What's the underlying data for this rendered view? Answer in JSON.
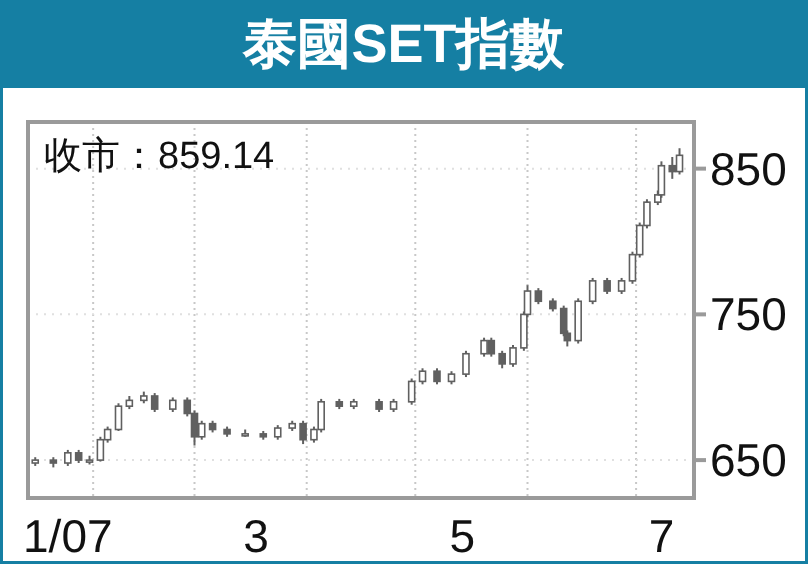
{
  "chart_data": {
    "type": "candlestick",
    "title": "泰國SET指數",
    "annotations": [
      "收市：859.14"
    ],
    "color": "#606060",
    "grid": true,
    "xlim": [
      "2007-01-14",
      "2007-07-17"
    ],
    "xticks": [
      {
        "value": "2007-01-25",
        "label": "1/07"
      },
      {
        "value": "2007-02-01",
        "label": null
      },
      {
        "value": "2007-03-01",
        "label": null
      },
      {
        "value": "2007-03-18",
        "label": "3"
      },
      {
        "value": "2007-04-01",
        "label": null
      },
      {
        "value": "2007-05-01",
        "label": null
      },
      {
        "value": "2007-05-14",
        "label": "5"
      },
      {
        "value": "2007-06-01",
        "label": null
      },
      {
        "value": "2007-07-01",
        "label": null
      },
      {
        "value": "2007-07-08",
        "label": "7"
      }
    ],
    "ylim": [
      624,
      882
    ],
    "yticks": [
      650,
      750,
      850
    ],
    "x": [
      "2007-01-16",
      "2007-01-21",
      "2007-01-25",
      "2007-01-28",
      "2007-01-31",
      "2007-02-03",
      "2007-02-05",
      "2007-02-08",
      "2007-02-11",
      "2007-02-15",
      "2007-02-18",
      "2007-02-23",
      "2007-02-27",
      "2007-03-01",
      "2007-03-03",
      "2007-03-06",
      "2007-03-10",
      "2007-03-15",
      "2007-03-20",
      "2007-03-24",
      "2007-03-28",
      "2007-03-31",
      "2007-04-03",
      "2007-04-05",
      "2007-04-10",
      "2007-04-14",
      "2007-04-21",
      "2007-04-25",
      "2007-04-30",
      "2007-05-03",
      "2007-05-07",
      "2007-05-11",
      "2007-05-15",
      "2007-05-20",
      "2007-05-22",
      "2007-05-25",
      "2007-05-28",
      "2007-05-31",
      "2007-06-01",
      "2007-06-04",
      "2007-06-08",
      "2007-06-11",
      "2007-06-12",
      "2007-06-15",
      "2007-06-19",
      "2007-06-23",
      "2007-06-27",
      "2007-06-30",
      "2007-07-02",
      "2007-07-04",
      "2007-07-07",
      "2007-07-08",
      "2007-07-11",
      "2007-07-13"
    ],
    "ohlc": [
      [
        648,
        652,
        646,
        650
      ],
      [
        650,
        652,
        645,
        648
      ],
      [
        648,
        657,
        646,
        655
      ],
      [
        655,
        657,
        648,
        650
      ],
      [
        650,
        653,
        647,
        650
      ],
      [
        650,
        666,
        649,
        664
      ],
      [
        664,
        673,
        662,
        671
      ],
      [
        671,
        689,
        670,
        687
      ],
      [
        687,
        694,
        685,
        691
      ],
      [
        691,
        697,
        689,
        694
      ],
      [
        694,
        696,
        683,
        685
      ],
      [
        685,
        693,
        683,
        691
      ],
      [
        691,
        693,
        680,
        682
      ],
      [
        682,
        684,
        660,
        666
      ],
      [
        666,
        677,
        664,
        675
      ],
      [
        675,
        677,
        669,
        671
      ],
      [
        671,
        673,
        666,
        668
      ],
      [
        668,
        671,
        666,
        668
      ],
      [
        668,
        670,
        664,
        666
      ],
      [
        666,
        674,
        664,
        672
      ],
      [
        672,
        677,
        670,
        675
      ],
      [
        675,
        677,
        661,
        664
      ],
      [
        664,
        673,
        662,
        671
      ],
      [
        671,
        692,
        669,
        690
      ],
      [
        690,
        692,
        685,
        687
      ],
      [
        687,
        692,
        685,
        690
      ],
      [
        690,
        692,
        683,
        685
      ],
      [
        685,
        692,
        683,
        690
      ],
      [
        690,
        706,
        688,
        704
      ],
      [
        704,
        713,
        702,
        711
      ],
      [
        711,
        713,
        702,
        704
      ],
      [
        704,
        711,
        702,
        709
      ],
      [
        709,
        725,
        707,
        723
      ],
      [
        723,
        734,
        721,
        732
      ],
      [
        732,
        734,
        721,
        723
      ],
      [
        723,
        725,
        713,
        716
      ],
      [
        716,
        729,
        714,
        727
      ],
      [
        727,
        752,
        725,
        750
      ],
      [
        750,
        770,
        748,
        766
      ],
      [
        766,
        768,
        757,
        759
      ],
      [
        759,
        761,
        752,
        754
      ],
      [
        754,
        756,
        735,
        737
      ],
      [
        737,
        739,
        728,
        732
      ],
      [
        732,
        761,
        730,
        759
      ],
      [
        759,
        775,
        757,
        773
      ],
      [
        773,
        775,
        764,
        766
      ],
      [
        766,
        775,
        764,
        773
      ],
      [
        773,
        793,
        771,
        791
      ],
      [
        791,
        813,
        789,
        811
      ],
      [
        811,
        829,
        809,
        827
      ],
      [
        827,
        835,
        825,
        832
      ],
      [
        832,
        855,
        830,
        852
      ],
      [
        852,
        858,
        843,
        848
      ],
      [
        848,
        864,
        846,
        859.14
      ]
    ]
  }
}
